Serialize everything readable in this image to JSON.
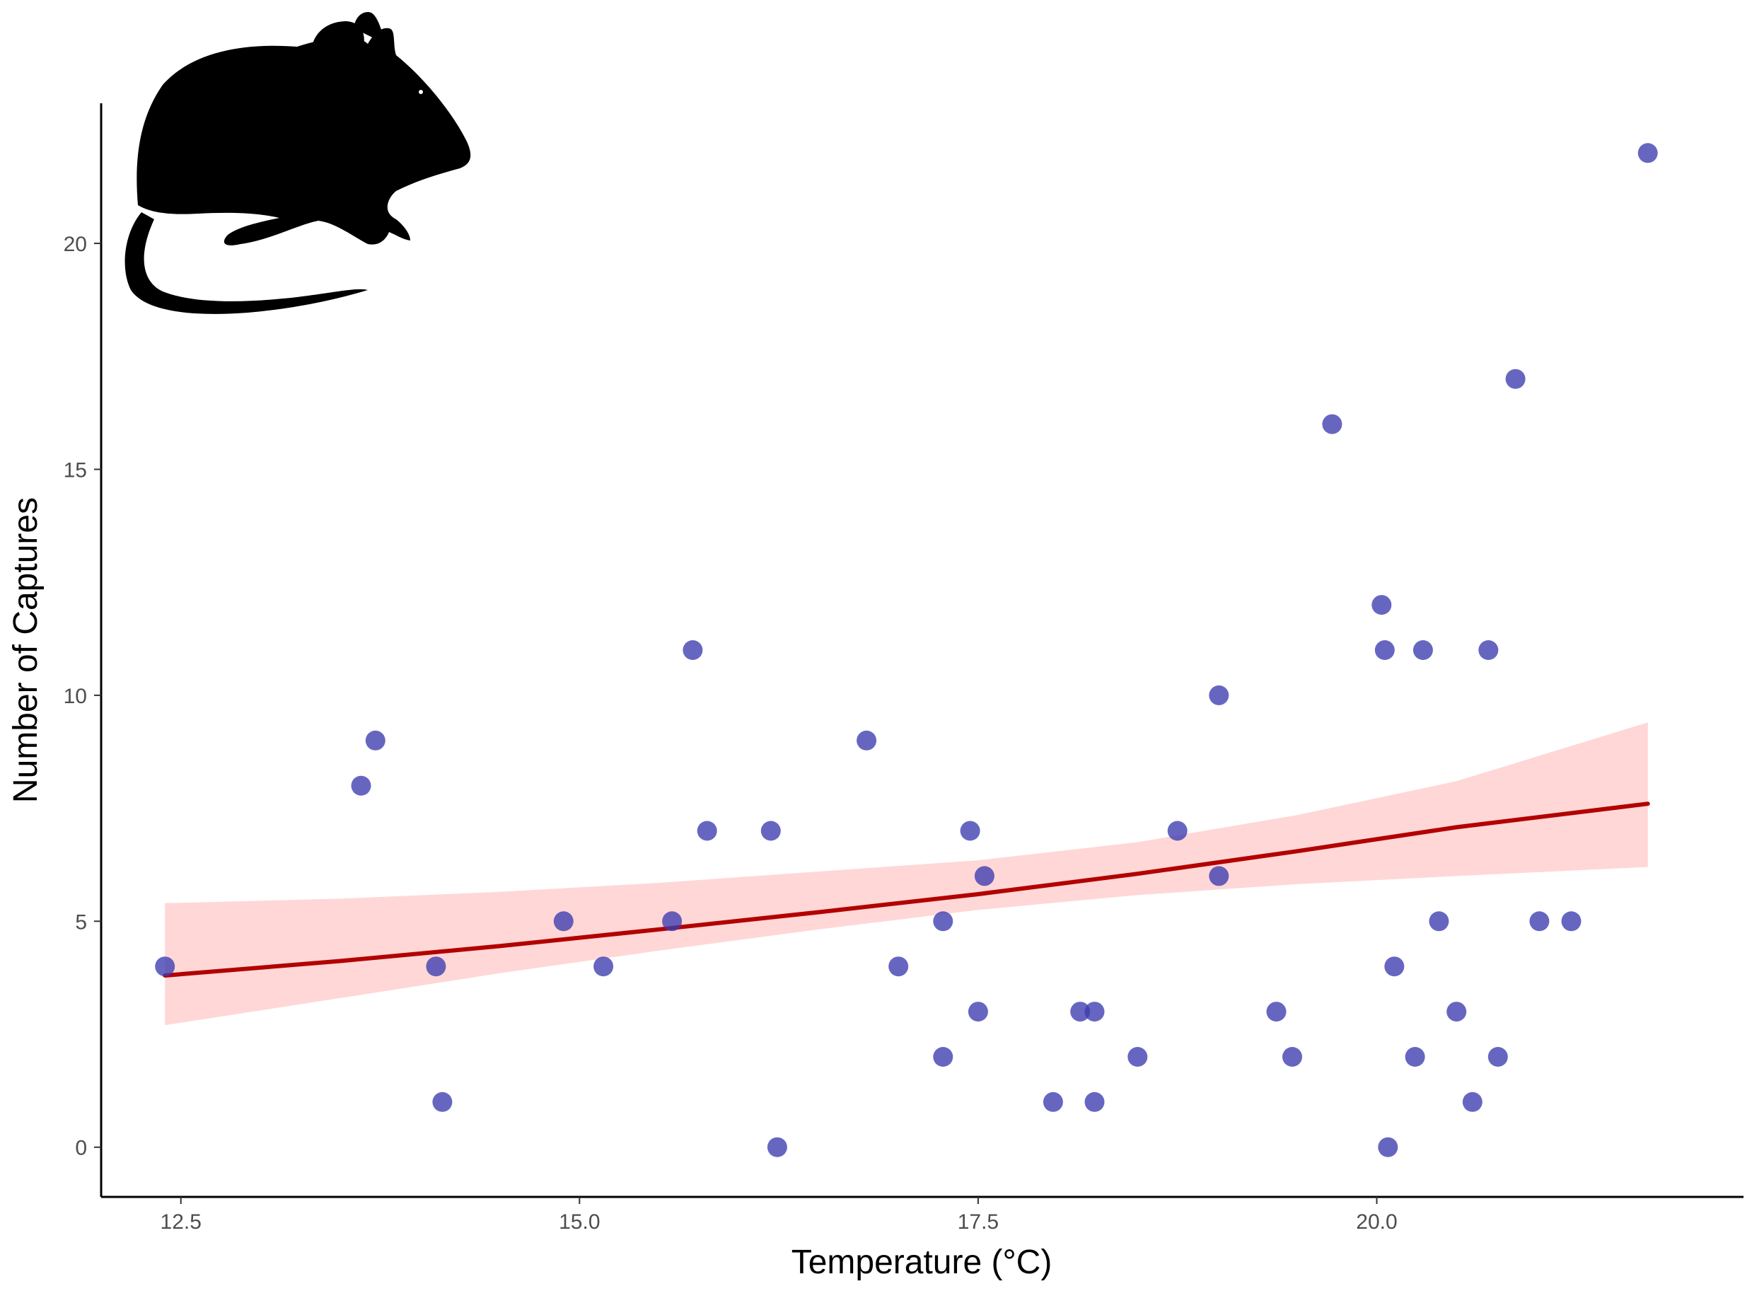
{
  "chart_data": {
    "type": "scatter",
    "title": "",
    "xlabel": "Temperature (°C)",
    "ylabel": "Number of Captures",
    "xlim": [
      12.0,
      22.3
    ],
    "ylim": [
      -1.1,
      23.1
    ],
    "x_ticks": [
      12.5,
      15.0,
      17.5,
      20.0
    ],
    "x_tick_labels": [
      "12.5",
      "15.0",
      "17.5",
      "20.0"
    ],
    "y_ticks": [
      0,
      5,
      10,
      15,
      20
    ],
    "y_tick_labels": [
      "0",
      "5",
      "10",
      "15",
      "20"
    ],
    "grid": false,
    "legend": "none",
    "icon": "mouse-silhouette-icon",
    "colors": {
      "points": "#3b3bb0",
      "fit_line": "#b30000",
      "ci_band": "#ffb6b6"
    },
    "series": [
      {
        "type": "scatter",
        "points": [
          [
            12.4,
            4
          ],
          [
            13.63,
            8
          ],
          [
            13.72,
            9
          ],
          [
            14.1,
            4
          ],
          [
            14.14,
            1
          ],
          [
            14.9,
            5
          ],
          [
            15.15,
            4
          ],
          [
            15.58,
            5
          ],
          [
            15.71,
            11
          ],
          [
            15.8,
            7
          ],
          [
            16.2,
            7
          ],
          [
            16.24,
            0
          ],
          [
            16.8,
            9
          ],
          [
            17.0,
            4
          ],
          [
            17.28,
            2
          ],
          [
            17.28,
            5
          ],
          [
            17.45,
            7
          ],
          [
            17.5,
            3
          ],
          [
            17.54,
            6
          ],
          [
            17.97,
            1
          ],
          [
            18.14,
            3
          ],
          [
            18.23,
            3
          ],
          [
            18.23,
            1
          ],
          [
            18.5,
            2
          ],
          [
            18.75,
            7
          ],
          [
            19.01,
            10
          ],
          [
            19.01,
            6
          ],
          [
            19.37,
            3
          ],
          [
            19.47,
            2
          ],
          [
            19.72,
            16
          ],
          [
            20.03,
            12
          ],
          [
            20.05,
            11
          ],
          [
            20.07,
            0
          ],
          [
            20.11,
            4
          ],
          [
            20.24,
            2
          ],
          [
            20.29,
            11
          ],
          [
            20.39,
            5
          ],
          [
            20.5,
            3
          ],
          [
            20.6,
            1
          ],
          [
            20.7,
            11
          ],
          [
            20.76,
            2
          ],
          [
            20.87,
            17
          ],
          [
            21.02,
            5
          ],
          [
            21.22,
            5
          ],
          [
            21.7,
            22
          ]
        ]
      },
      {
        "type": "line",
        "points": [
          [
            12.4,
            3.8
          ],
          [
            13.5,
            4.12
          ],
          [
            14.5,
            4.45
          ],
          [
            15.5,
            4.82
          ],
          [
            16.5,
            5.2
          ],
          [
            17.5,
            5.6
          ],
          [
            18.5,
            6.05
          ],
          [
            19.5,
            6.55
          ],
          [
            20.5,
            7.08
          ],
          [
            21.7,
            7.6
          ]
        ]
      },
      {
        "type": "area",
        "x": [
          12.4,
          13.5,
          14.5,
          15.5,
          16.5,
          17.5,
          18.5,
          19.5,
          20.5,
          21.7
        ],
        "lower": [
          2.7,
          3.3,
          3.85,
          4.35,
          4.82,
          5.25,
          5.58,
          5.82,
          6.0,
          6.2
        ],
        "upper": [
          5.4,
          5.5,
          5.65,
          5.85,
          6.1,
          6.35,
          6.75,
          7.35,
          8.1,
          9.4
        ]
      }
    ]
  }
}
